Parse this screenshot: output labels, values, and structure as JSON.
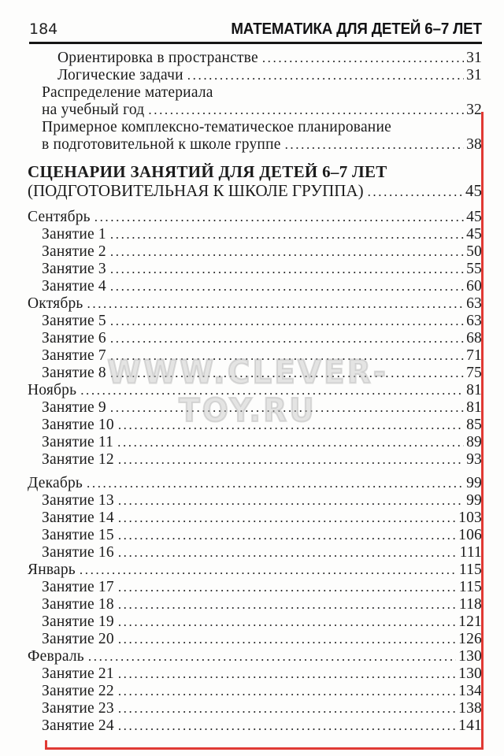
{
  "header": {
    "page_number": "184",
    "title": "МАТЕМАТИКА ДЛЯ ДЕТЕЙ 6–7 ЛЕТ"
  },
  "watermark": {
    "text": "WWW.CLEVER-TOY.RU"
  },
  "toc": {
    "intro_entries": [
      {
        "label": "Ориентировка в пространстве",
        "page": "31",
        "indent": 2
      },
      {
        "label": "Логические задачи",
        "page": "31",
        "indent": 2
      },
      {
        "label": "Распределение материала",
        "page": "",
        "indent": 1
      },
      {
        "label": "на учебный год",
        "page": "32",
        "indent": 1
      },
      {
        "label": "Примерное комплексно-тематическое планирование",
        "page": "",
        "indent": 1
      },
      {
        "label": "в подготовительной к школе группе",
        "page": "38",
        "indent": 1
      }
    ],
    "heading": {
      "line1": "СЦЕНАРИИ ЗАНЯТИЙ ДЛЯ ДЕТЕЙ 6–7 ЛЕТ",
      "line2": "(ПОДГОТОВИТЕЛЬНАЯ К ШКОЛЕ ГРУППА)",
      "page": "45"
    },
    "entries": [
      {
        "label": "Сентябрь",
        "page": "45",
        "indent": 0
      },
      {
        "label": "Занятие 1",
        "page": "45",
        "indent": 1
      },
      {
        "label": "Занятие 2",
        "page": "50",
        "indent": 1
      },
      {
        "label": "Занятие 3",
        "page": "55",
        "indent": 1
      },
      {
        "label": "Занятие 4",
        "page": "60",
        "indent": 1
      },
      {
        "label": "Октябрь",
        "page": "63",
        "indent": 0
      },
      {
        "label": "Занятие 5",
        "page": "63",
        "indent": 1
      },
      {
        "label": "Занятие 6",
        "page": "68",
        "indent": 1
      },
      {
        "label": "Занятие 7",
        "page": "71",
        "indent": 1
      },
      {
        "label": "Занятие 8",
        "page": "75",
        "indent": 1
      },
      {
        "label": "Ноябрь",
        "page": "81",
        "indent": 0
      },
      {
        "label": "Занятие 9",
        "page": "81",
        "indent": 1
      },
      {
        "label": "Занятие 10",
        "page": "85",
        "indent": 1
      },
      {
        "label": "Занятие 11",
        "page": "89",
        "indent": 1
      },
      {
        "label": "Занятие 12",
        "page": "93",
        "indent": 1
      },
      {
        "label": "Декабрь",
        "page": "99",
        "indent": 0,
        "gap_before": true
      },
      {
        "label": "Занятие 13",
        "page": "99",
        "indent": 1
      },
      {
        "label": "Занятие 14",
        "page": "103",
        "indent": 1
      },
      {
        "label": "Занятие 15",
        "page": "106",
        "indent": 1
      },
      {
        "label": "Занятие 16",
        "page": "111",
        "indent": 1
      },
      {
        "label": "Январь",
        "page": "115",
        "indent": 0
      },
      {
        "label": "Занятие 17",
        "page": "115",
        "indent": 1
      },
      {
        "label": "Занятие 18",
        "page": "118",
        "indent": 1
      },
      {
        "label": "Занятие 19",
        "page": "121",
        "indent": 1
      },
      {
        "label": "Занятие 20",
        "page": "126",
        "indent": 1
      },
      {
        "label": "Февраль",
        "page": "130",
        "indent": 0
      },
      {
        "label": "Занятие 21",
        "page": "130",
        "indent": 1
      },
      {
        "label": "Занятие 22",
        "page": "134",
        "indent": 1
      },
      {
        "label": "Занятие 23",
        "page": "138",
        "indent": 1
      },
      {
        "label": "Занятие 24",
        "page": "141",
        "indent": 1
      }
    ]
  },
  "colors": {
    "accent_red": "#e03a34",
    "rule": "#161616"
  }
}
